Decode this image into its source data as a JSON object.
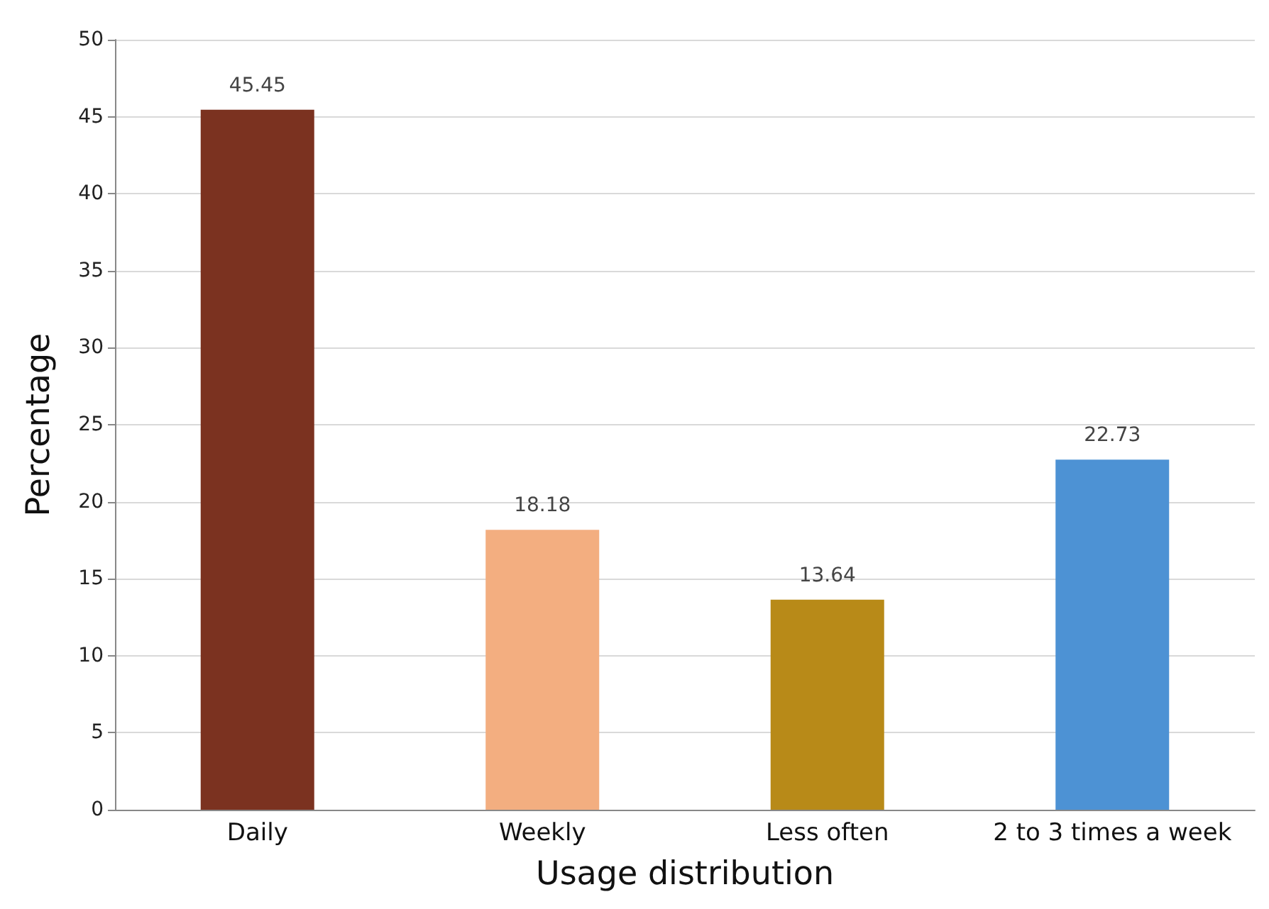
{
  "chart_data": {
    "type": "bar",
    "xlabel": "Usage distribution",
    "ylabel": "Percentage",
    "categories": [
      "Daily",
      "Weekly",
      "Less often",
      "2 to 3 times a week"
    ],
    "values": [
      45.45,
      18.18,
      13.64,
      22.73
    ],
    "colors": [
      "#7b3220",
      "#f3ae80",
      "#b88a18",
      "#4d92d4"
    ],
    "ylim": [
      0,
      50
    ],
    "yticks": [
      0,
      5,
      10,
      15,
      20,
      25,
      30,
      35,
      40,
      45,
      50
    ],
    "grid": "y",
    "data_labels": true
  }
}
